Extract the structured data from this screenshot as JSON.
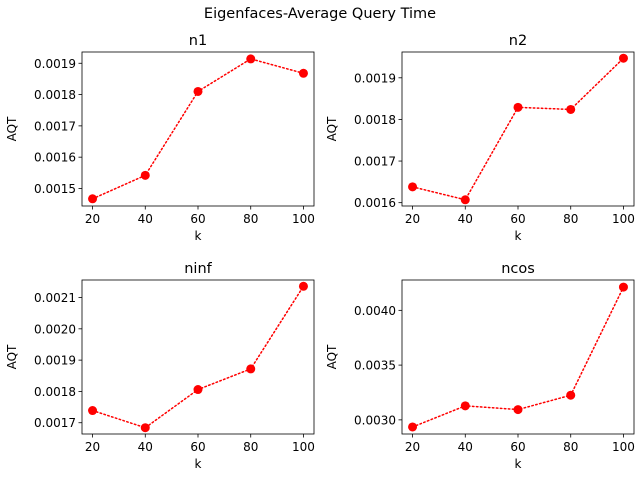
{
  "figure": {
    "suptitle": "Eigenfaces-Average Query Time"
  },
  "chart_data": [
    {
      "type": "line",
      "title": "n1",
      "xlabel": "k",
      "ylabel": "AQT",
      "x": [
        20,
        40,
        60,
        80,
        100
      ],
      "series": [
        {
          "values": [
            0.001467,
            0.001542,
            0.00181,
            0.001914,
            0.001868
          ]
        }
      ],
      "xticks": [
        20,
        40,
        60,
        80,
        100
      ],
      "yticks": [
        0.0015,
        0.0016,
        0.0017,
        0.0018,
        0.0019
      ],
      "ytick_labels": [
        "0.0015",
        "0.0016",
        "0.0017",
        "0.0018",
        "0.0019"
      ],
      "ylim": [
        0.001444,
        0.001936
      ],
      "xlim": [
        16,
        104
      ],
      "grid": false,
      "style": {
        "color": "#ff0000",
        "linestyle": "dotted",
        "marker": "circle"
      }
    },
    {
      "type": "line",
      "title": "n2",
      "xlabel": "k",
      "ylabel": "AQT",
      "x": [
        20,
        40,
        60,
        80,
        100
      ],
      "series": [
        {
          "values": [
            0.001638,
            0.001607,
            0.001829,
            0.001824,
            0.001947
          ]
        }
      ],
      "xticks": [
        20,
        40,
        60,
        80,
        100
      ],
      "yticks": [
        0.0016,
        0.0017,
        0.0018,
        0.0019
      ],
      "ytick_labels": [
        "0.0016",
        "0.0017",
        "0.0018",
        "0.0019"
      ],
      "ylim": [
        0.001592,
        0.001962
      ],
      "xlim": [
        16,
        104
      ],
      "grid": false,
      "style": {
        "color": "#ff0000",
        "linestyle": "dotted",
        "marker": "circle"
      }
    },
    {
      "type": "line",
      "title": "ninf",
      "xlabel": "k",
      "ylabel": "AQT",
      "x": [
        20,
        40,
        60,
        80,
        100
      ],
      "series": [
        {
          "values": [
            0.001739,
            0.001684,
            0.001806,
            0.001872,
            0.002136
          ]
        }
      ],
      "xticks": [
        20,
        40,
        60,
        80,
        100
      ],
      "yticks": [
        0.0017,
        0.0018,
        0.0019,
        0.002,
        0.0021
      ],
      "ytick_labels": [
        "0.0017",
        "0.0018",
        "0.0019",
        "0.0020",
        "0.0021"
      ],
      "ylim": [
        0.001664,
        0.002156
      ],
      "xlim": [
        16,
        104
      ],
      "grid": false,
      "style": {
        "color": "#ff0000",
        "linestyle": "dotted",
        "marker": "circle"
      }
    },
    {
      "type": "line",
      "title": "ncos",
      "xlabel": "k",
      "ylabel": "AQT",
      "x": [
        20,
        40,
        60,
        80,
        100
      ],
      "series": [
        {
          "values": [
            0.002935,
            0.003128,
            0.003094,
            0.003225,
            0.004212
          ]
        }
      ],
      "xticks": [
        20,
        40,
        60,
        80,
        100
      ],
      "yticks": [
        0.003,
        0.0035,
        0.004
      ],
      "ytick_labels": [
        "0.0030",
        "0.0035",
        "0.0040"
      ],
      "ylim": [
        0.002871,
        0.004277
      ],
      "xlim": [
        16,
        104
      ],
      "grid": false,
      "style": {
        "color": "#ff0000",
        "linestyle": "dotted",
        "marker": "circle"
      }
    }
  ]
}
